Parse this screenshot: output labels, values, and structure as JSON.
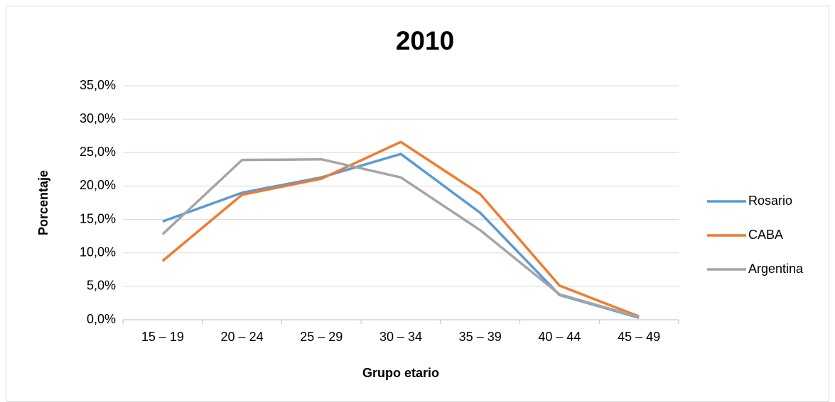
{
  "chart_data": {
    "type": "line",
    "title": "2010",
    "x_label": "Grupo etario",
    "y_label": "Porcentaje",
    "categories": [
      "15 – 19",
      "20 – 24",
      "25 – 29",
      "30 – 34",
      "35 – 39",
      "40 – 44",
      "45 – 49"
    ],
    "series": [
      {
        "name": "Rosario",
        "color": "#5b9bd5",
        "values": [
          14.7,
          19.0,
          21.3,
          24.8,
          16.0,
          3.7,
          0.3
        ]
      },
      {
        "name": "CABA",
        "color": "#ed7d31",
        "values": [
          8.8,
          18.7,
          21.1,
          26.6,
          18.8,
          5.1,
          0.5
        ]
      },
      {
        "name": "Argentina",
        "color": "#a5a5a5",
        "values": [
          12.8,
          23.9,
          24.0,
          21.3,
          13.4,
          3.8,
          0.4
        ]
      }
    ],
    "ylim": [
      0,
      35
    ],
    "yticks": [
      {
        "value": 0,
        "label": "0,0%"
      },
      {
        "value": 5,
        "label": "5,0%"
      },
      {
        "value": 10,
        "label": "10,0%"
      },
      {
        "value": 15,
        "label": "15,0%"
      },
      {
        "value": 20,
        "label": "20,0%"
      },
      {
        "value": 25,
        "label": "25,0%"
      },
      {
        "value": 30,
        "label": "30,0%"
      },
      {
        "value": 35,
        "label": "35,0%"
      }
    ],
    "grid": true,
    "legend": "right"
  }
}
